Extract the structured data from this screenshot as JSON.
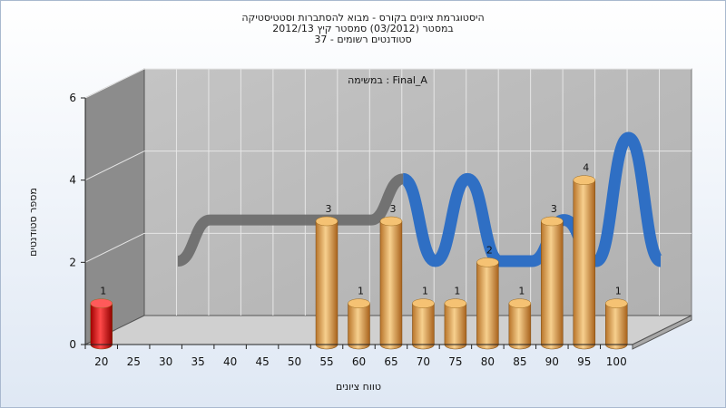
{
  "chart_data": {
    "type": "bar",
    "title_lines": [
      "היסטוגרמת ציונים בקורס - מבוא להסתברות וסטטיסטיקה",
      "במסטר  (03/2012)  סמסטר קיץ 2012/13",
      "סטודנטים רשומים - 37"
    ],
    "annotation": "במשימה : Final_A",
    "xlabel": "טווח ציונים",
    "ylabel": "מספר סטודנטים",
    "ylim": [
      0,
      6
    ],
    "yticks": [
      0,
      2,
      4,
      6
    ],
    "xticks": [
      "20",
      "25",
      "30",
      "35",
      "40",
      "45",
      "50",
      "55",
      "60",
      "65",
      "70",
      "75",
      "80",
      "85",
      "90",
      "95",
      "100"
    ],
    "bars": [
      {
        "x": 20,
        "value": 1,
        "label": "1",
        "color": "#e01818"
      },
      {
        "x": 55,
        "value": 3,
        "label": "3",
        "color": "#e8a84a"
      },
      {
        "x": 60,
        "value": 1,
        "label": "1",
        "color": "#e8a84a"
      },
      {
        "x": 65,
        "value": 3,
        "label": "3",
        "color": "#e8a84a"
      },
      {
        "x": 70,
        "value": 1,
        "label": "1",
        "color": "#e8a84a"
      },
      {
        "x": 75,
        "value": 1,
        "label": "1",
        "color": "#e8a84a"
      },
      {
        "x": 80,
        "value": 2,
        "label": "2",
        "color": "#e8a84a"
      },
      {
        "x": 85,
        "value": 1,
        "label": "1",
        "color": "#e8a84a"
      },
      {
        "x": 90,
        "value": 3,
        "label": "3",
        "color": "#e8a84a"
      },
      {
        "x": 95,
        "value": 4,
        "label": "4",
        "color": "#e8a84a"
      },
      {
        "x": 100,
        "value": 1,
        "label": "1",
        "color": "#e8a84a"
      }
    ],
    "curve": {
      "points": [
        {
          "x": 25,
          "y": 1.5
        },
        {
          "x": 30,
          "y": 2.5
        },
        {
          "x": 35,
          "y": 2.5
        },
        {
          "x": 40,
          "y": 2.5
        },
        {
          "x": 45,
          "y": 2.5
        },
        {
          "x": 50,
          "y": 2.5
        },
        {
          "x": 55,
          "y": 2.5
        },
        {
          "x": 60,
          "y": 3.5
        },
        {
          "x": 65,
          "y": 1.5
        },
        {
          "x": 70,
          "y": 3.5
        },
        {
          "x": 75,
          "y": 1.5
        },
        {
          "x": 80,
          "y": 1.5
        },
        {
          "x": 85,
          "y": 2.5
        },
        {
          "x": 90,
          "y": 1.5
        },
        {
          "x": 95,
          "y": 4.5
        },
        {
          "x": 100,
          "y": 1.5
        }
      ],
      "grey_color": "#6e6e6e",
      "blue_color": "#2f6fc4"
    },
    "grid": true,
    "wall_color": "#b9b9b9",
    "floor_color": "#d0d0d0",
    "side_wall_color": "#8c8c8c"
  }
}
